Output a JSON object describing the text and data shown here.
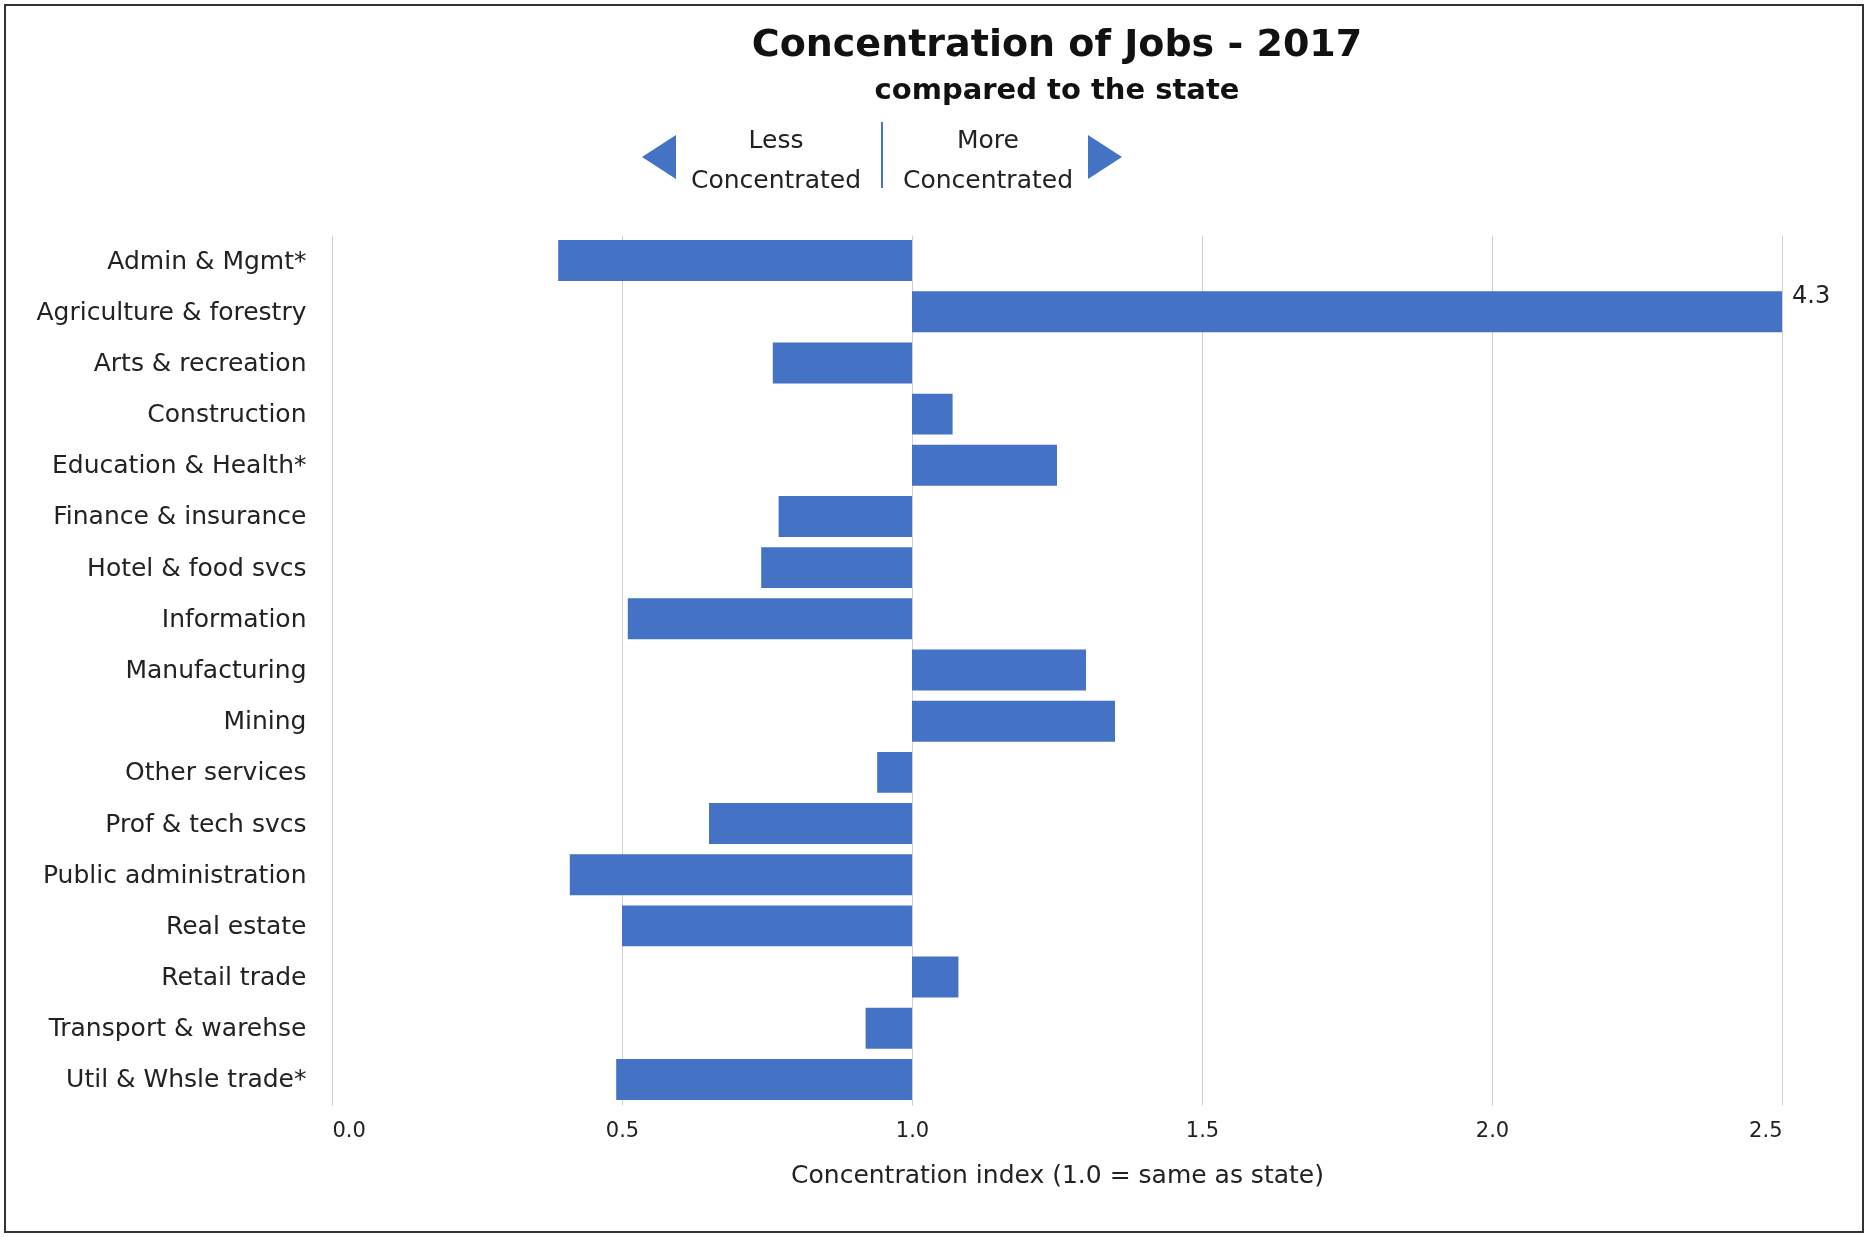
{
  "chart_data": {
    "type": "bar",
    "orientation": "horizontal",
    "title": "Concentration of Jobs - 2017",
    "subtitle": "compared to the state",
    "xlabel": "Concentration index (1.0 = same as state)",
    "categories": [
      "Admin & Mgmt*",
      "Agriculture & forestry",
      "Arts & recreation",
      "Construction",
      "Education & Health*",
      "Finance & insurance",
      "Hotel & food svcs",
      "Information",
      "Manufacturing",
      "Mining",
      "Other services",
      "Prof & tech svcs",
      "Public administration",
      "Real estate",
      "Retail trade",
      "Transport & warehse",
      "Util & Whsle trade*"
    ],
    "base": [
      1,
      1,
      1,
      1,
      1,
      1,
      1,
      1,
      1,
      1,
      1,
      1,
      1,
      1,
      1,
      1,
      1
    ],
    "values": [
      -0.61,
      3.3,
      -0.24,
      0.07,
      0.25,
      -0.23,
      -0.26,
      -0.49,
      0.3,
      0.35,
      -0.06,
      -0.35,
      -0.59,
      -0.5,
      0.08,
      -0.08,
      -0.51
    ],
    "value_labels": [
      null,
      "4.3",
      null,
      null,
      null,
      null,
      null,
      null,
      null,
      null,
      null,
      null,
      null,
      null,
      null,
      null,
      null
    ],
    "color": "#4472c4",
    "xlim": [
      0,
      2.5
    ],
    "xticks": [
      {
        "value": 0,
        "label": "0.0"
      },
      {
        "value": 0.5,
        "label": "0.5"
      },
      {
        "value": 1,
        "label": "1.0"
      },
      {
        "value": 1.5,
        "label": "1.5"
      },
      {
        "value": 2,
        "label": "2.0"
      },
      {
        "value": 2.5,
        "label": "2.5"
      }
    ],
    "grid": "x",
    "annotations": [
      "Less Concentrated",
      "More Concentrated"
    ]
  }
}
